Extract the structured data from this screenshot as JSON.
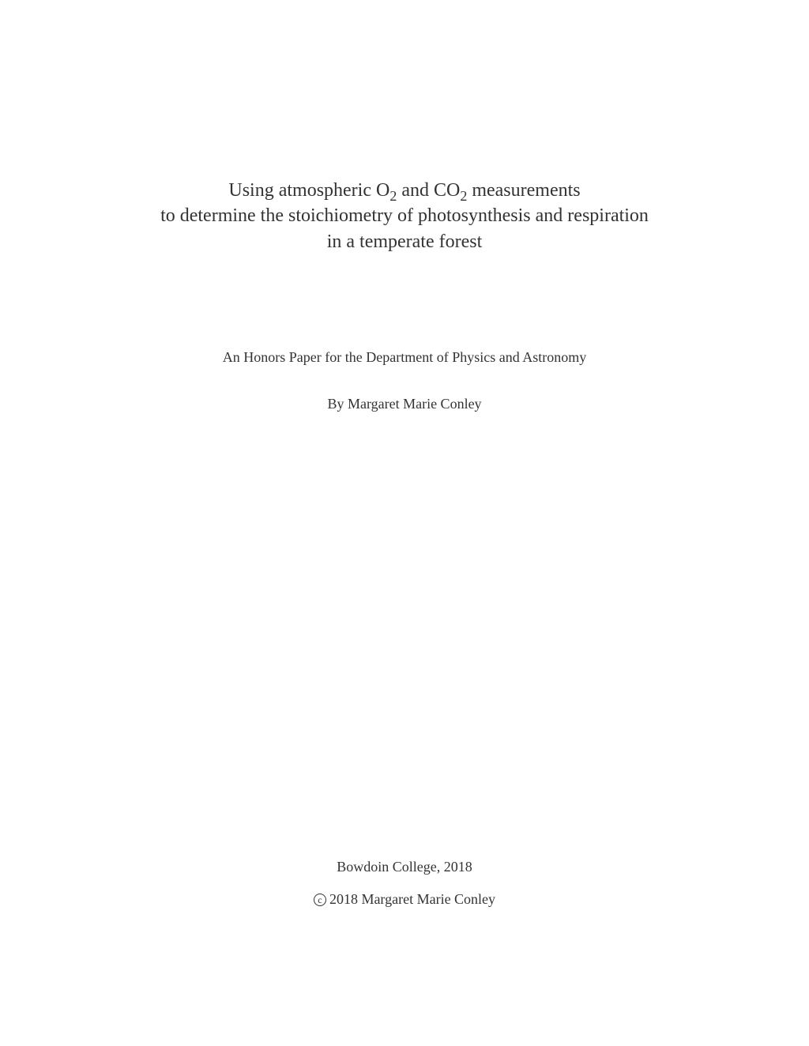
{
  "title": {
    "line1_prefix": "Using atmospheric O",
    "line1_sub1": "2",
    "line1_mid": " and CO",
    "line1_sub2": "2",
    "line1_suffix": " measurements",
    "line2": "to determine the stoichiometry of photosynthesis and respiration",
    "line3": "in a temperate forest"
  },
  "subtitle": "An Honors Paper for the Department of Physics and Astronomy",
  "author": "By Margaret Marie Conley",
  "institution": "Bowdoin College, 2018",
  "copyright": {
    "symbol": "c",
    "text": "2018 Margaret Marie Conley"
  },
  "colors": {
    "background": "#ffffff",
    "text": "#333333"
  },
  "typography": {
    "title_fontsize": 24,
    "body_fontsize": 18,
    "font_family": "Times New Roman"
  }
}
